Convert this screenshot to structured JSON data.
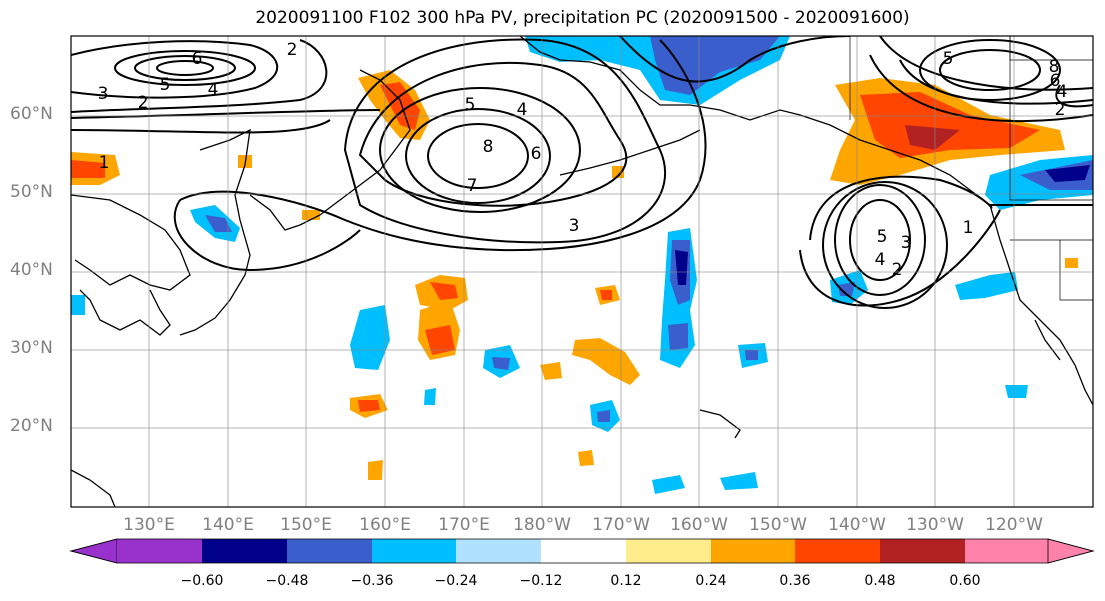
{
  "title": "2020091100 F102 300 hPa PV, precipitation PC (2020091500 - 2020091600)",
  "lat_labels": [
    "60°N",
    "50°N",
    "40°N",
    "30°N",
    "20°N"
  ],
  "lon_labels": [
    "130°E",
    "140°E",
    "150°E",
    "160°E",
    "170°E",
    "180°W",
    "170°W",
    "160°W",
    "150°W",
    "140°W",
    "130°W",
    "120°W"
  ],
  "colorbar": {
    "labels": [
      "−0.60",
      "−0.48",
      "−0.36",
      "−0.24",
      "−0.12",
      "0.12",
      "0.24",
      "0.36",
      "0.48",
      "0.60"
    ],
    "colors": [
      "#9932cc",
      "#00008b",
      "#3a5fcd",
      "#00bfff",
      "#b0e2ff",
      "#ffffff",
      "#ffec8b",
      "#ffa500",
      "#ff4500",
      "#b22222",
      "#ff82ab"
    ]
  },
  "contour_labels": [
    "6",
    "5",
    "4",
    "3",
    "2",
    "2",
    "8",
    "7",
    "6",
    "5",
    "4",
    "3",
    "5",
    "4",
    "3",
    "2",
    "8",
    "6",
    "5",
    "4",
    "2",
    "1",
    "1"
  ]
}
